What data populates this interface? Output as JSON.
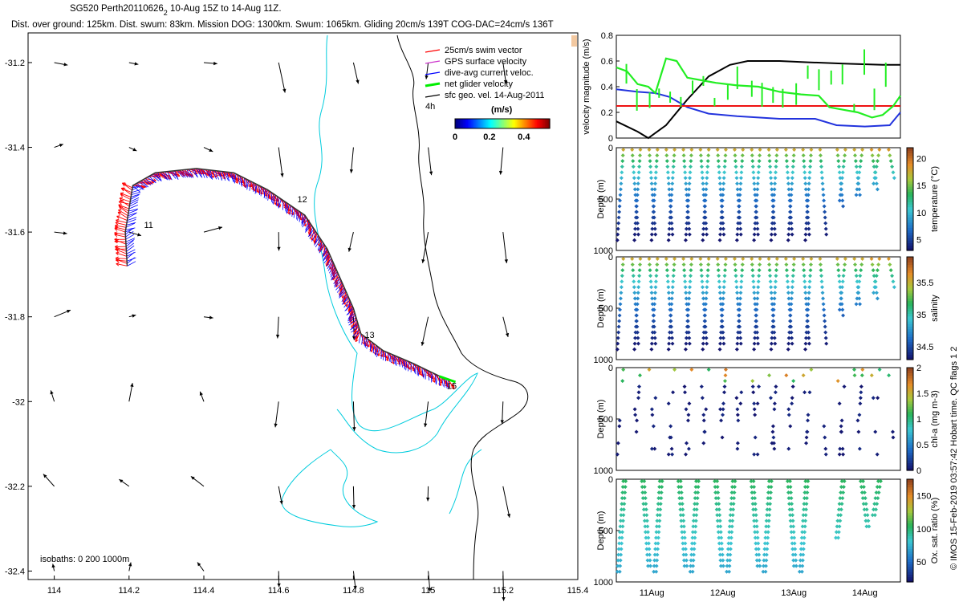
{
  "header": {
    "title_prefix": "SG520 Perth20110626",
    "title_subscript": "2",
    "title_suffix": " 10-Aug 15Z to 14-Aug 11Z.",
    "subtitle": "Dist. over ground: 125km. Dist. swum: 83km. Mission DOG: 1300km. Swum: 1065km. Gliding 20cm/s 139T COG-DAC=24cm/s 136T"
  },
  "side_credit": "© IMOS 15-Feb-2019 03:57:42 Hobart time. QC flags 1  2",
  "colors": {
    "swim": "#ff0000",
    "gps": "#cc33cc",
    "dac": "#0000ff",
    "net": "#00ee00",
    "sfc": "#000000",
    "isobath_cyan": "#00ccdd",
    "coast": "#000000"
  },
  "chart_data": [
    {
      "type": "scatter",
      "title": "map",
      "xlim": [
        113.93,
        115.4
      ],
      "ylim": [
        -32.42,
        -31.13
      ],
      "xticks": [
        "114",
        "114.2",
        "114.4",
        "114.6",
        "114.8",
        "115",
        "115.2",
        "115.4"
      ],
      "xtick_values": [
        114,
        114.2,
        114.4,
        114.6,
        114.8,
        115,
        115.2,
        115.4
      ],
      "yticks": [
        "-31.2",
        "-31.4",
        "-31.6",
        "-31.8",
        "-32",
        "-32.2",
        "-32.4"
      ],
      "ytick_values": [
        -31.2,
        -31.4,
        -31.6,
        -31.8,
        -32,
        -32.2,
        -32.4
      ],
      "legend": {
        "placement": "top-right",
        "entries": [
          "25cm/s swim vector",
          "GPS surface velocity",
          "dive-avg current veloc.",
          "net glider velocity",
          "sfc geo. vel. 14-Aug-2011"
        ],
        "scale_label": "4h",
        "colorbar_title": "(m/s)",
        "colorbar_ticks": [
          "0",
          "0.2",
          "0.4"
        ],
        "colorbar_tick_values": [
          0,
          0.2,
          0.4
        ],
        "colorbar_range": [
          0,
          0.55
        ]
      },
      "isobaths_label": "isobaths: 0   200  1000m",
      "day_labels": [
        {
          "label": "11",
          "lon": 114.24,
          "lat": -31.59
        },
        {
          "label": "12",
          "lon": 114.65,
          "lat": -31.53
        },
        {
          "label": "13",
          "lon": 114.83,
          "lat": -31.85
        },
        {
          "label": "15",
          "lon": 115.05,
          "lat": -31.97
        }
      ],
      "track": [
        [
          114.195,
          -31.68
        ],
        [
          114.19,
          -31.6
        ],
        [
          114.21,
          -31.49
        ],
        [
          114.27,
          -31.46
        ],
        [
          114.38,
          -31.45
        ],
        [
          114.48,
          -31.46
        ],
        [
          114.57,
          -31.5
        ],
        [
          114.67,
          -31.56
        ],
        [
          114.73,
          -31.64
        ],
        [
          114.77,
          -31.72
        ],
        [
          114.8,
          -31.78
        ],
        [
          114.82,
          -31.84
        ],
        [
          114.88,
          -31.88
        ],
        [
          114.96,
          -31.91
        ],
        [
          115.03,
          -31.94
        ],
        [
          115.06,
          -31.95
        ]
      ],
      "geo_grid_lons": [
        114,
        114.2,
        114.4,
        114.6,
        114.8,
        115,
        115.2,
        115.4
      ],
      "geo_grid_lats": [
        -31.2,
        -31.4,
        -31.6,
        -31.8,
        -32,
        -32.2,
        -32.4
      ]
    },
    {
      "type": "line",
      "title": "velocity",
      "ylabel": "velocity magnitude (m/s)",
      "ylim": [
        0,
        0.8
      ],
      "yticks": [
        "0",
        "0.2",
        "0.4",
        "0.6",
        "0.8"
      ],
      "ytick_values": [
        0,
        0.2,
        0.4,
        0.6,
        0.8
      ],
      "xlim": [
        0,
        4
      ],
      "series": [
        {
          "values": [
            [
              0,
              0.13
            ],
            [
              0.3,
              0.05
            ],
            [
              0.45,
              0
            ],
            [
              0.7,
              0.1
            ],
            [
              1.0,
              0.3
            ],
            [
              1.3,
              0.48
            ],
            [
              1.6,
              0.57
            ],
            [
              1.85,
              0.6
            ],
            [
              2.3,
              0.6
            ],
            [
              2.7,
              0.59
            ],
            [
              3.2,
              0.58
            ],
            [
              3.75,
              0.57
            ],
            [
              4,
              0.57
            ]
          ]
        },
        {
          "values": [
            [
              0,
              0.38
            ],
            [
              0.3,
              0.36
            ],
            [
              0.55,
              0.35
            ],
            [
              0.75,
              0.32
            ],
            [
              1.0,
              0.24
            ],
            [
              1.3,
              0.19
            ],
            [
              1.7,
              0.17
            ],
            [
              2.3,
              0.15
            ],
            [
              2.8,
              0.15
            ],
            [
              3.1,
              0.1
            ],
            [
              3.5,
              0.09
            ],
            [
              3.85,
              0.1
            ],
            [
              4,
              0.2
            ]
          ]
        },
        {
          "values": [
            [
              0,
              0.25
            ],
            [
              2.9,
              0.25
            ],
            [
              3.0,
              0.25
            ],
            [
              3.55,
              0.25
            ],
            [
              3.65,
              0.25
            ],
            [
              4,
              0.25
            ]
          ]
        },
        {
          "values": [
            [
              0,
              0.55
            ],
            [
              0.15,
              0.52
            ],
            [
              0.3,
              0.42
            ],
            [
              0.45,
              0.4
            ],
            [
              0.55,
              0.35
            ],
            [
              0.7,
              0.62
            ],
            [
              0.85,
              0.6
            ],
            [
              1.0,
              0.47
            ],
            [
              1.2,
              0.45
            ],
            [
              1.4,
              0.43
            ],
            [
              1.7,
              0.41
            ],
            [
              2.0,
              0.4
            ],
            [
              2.3,
              0.36
            ],
            [
              2.6,
              0.34
            ],
            [
              2.85,
              0.33
            ],
            [
              3.0,
              0.24
            ],
            [
              3.2,
              0.22
            ],
            [
              3.4,
              0.2
            ],
            [
              3.6,
              0.16
            ],
            [
              3.75,
              0.18
            ],
            [
              3.9,
              0.25
            ],
            [
              4,
              0.33
            ]
          ]
        }
      ]
    },
    {
      "type": "scatter",
      "title": "temperature",
      "ylabel": "Depth (m)",
      "clabel": "temperature (°C)",
      "yticks": [
        "0",
        "500",
        "1000"
      ],
      "ytick_values": [
        0,
        500,
        1000
      ],
      "cticks": [
        "5",
        "10",
        "15",
        "20"
      ],
      "ctick_values": [
        5,
        10,
        15,
        20
      ],
      "clim": [
        3,
        22
      ],
      "deep_field": true,
      "surface_value": 21,
      "deep_value": 4
    },
    {
      "type": "scatter",
      "title": "salinity",
      "ylabel": "Depth (m)",
      "clabel": "salinity",
      "yticks": [
        "0",
        "500",
        "1000"
      ],
      "ytick_values": [
        0,
        500,
        1000
      ],
      "cticks": [
        "34.5",
        "35",
        "35.5"
      ],
      "ctick_values": [
        34.5,
        35,
        35.5
      ],
      "clim": [
        34.3,
        35.9
      ],
      "deep_field": true,
      "surface_value": 35.7,
      "deep_value": 34.4
    },
    {
      "type": "scatter",
      "title": "chl",
      "ylabel": "Depth (m)",
      "clabel": "chl-a (mg m-3)",
      "yticks": [
        "0",
        "500",
        "1000"
      ],
      "ytick_values": [
        0,
        500,
        1000
      ],
      "cticks": [
        "0",
        "0.5",
        "1",
        "1.5",
        "2"
      ],
      "ctick_values": [
        0,
        0.5,
        1,
        1.5,
        2
      ],
      "clim": [
        0,
        2
      ],
      "deep_field": false,
      "surface_value": 0.8,
      "deep_value": 0
    },
    {
      "type": "scatter",
      "title": "oxygen",
      "ylabel": "Depth (m)",
      "clabel": "Ox. sat. ratio (%)",
      "yticks": [
        "0",
        "500",
        "1000"
      ],
      "ytick_values": [
        0,
        500,
        1000
      ],
      "cticks": [
        "50",
        "100",
        "150"
      ],
      "ctick_values": [
        50,
        100,
        150
      ],
      "clim": [
        20,
        175
      ],
      "deep_field": true,
      "surface_value": 100,
      "deep_value": 40
    }
  ],
  "time_axis": {
    "labels": [
      "11Aug",
      "12Aug",
      "13Aug",
      "14Aug"
    ],
    "label_values": [
      0.5,
      1.5,
      2.5,
      3.5
    ],
    "range": [
      0,
      4
    ]
  }
}
